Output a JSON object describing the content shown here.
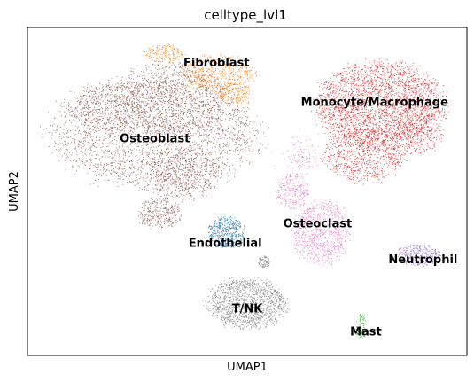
{
  "chart_data": {
    "type": "scatter",
    "title": "celltype_lvl1",
    "xlabel": "UMAP1",
    "ylabel": "UMAP2",
    "grid": false,
    "legend": "on data",
    "ticks": "none",
    "xlim": [
      0,
      100
    ],
    "ylim": [
      0,
      100
    ],
    "clusters": [
      {
        "name": "Osteoblast",
        "color": "#8c564b",
        "label_pos": [
          29,
          66
        ]
      },
      {
        "name": "Fibroblast",
        "color": "#ff7f0e",
        "label_pos": [
          43,
          89
        ]
      },
      {
        "name": "Monocyte/Macrophage",
        "color": "#d62728",
        "label_pos": [
          79,
          77
        ]
      },
      {
        "name": "Osteoclast",
        "color": "#e377c2",
        "label_pos": [
          66,
          40
        ]
      },
      {
        "name": "Endothelial",
        "color": "#1f77b4",
        "label_pos": [
          45,
          34
        ]
      },
      {
        "name": "Neutrophil",
        "color": "#9467bd",
        "label_pos": [
          90,
          29
        ]
      },
      {
        "name": "T/NK",
        "color": "#7f7f7f",
        "label_pos": [
          50,
          14
        ]
      },
      {
        "name": "Mast",
        "color": "#2ca02c",
        "label_pos": [
          77,
          7
        ]
      }
    ]
  }
}
